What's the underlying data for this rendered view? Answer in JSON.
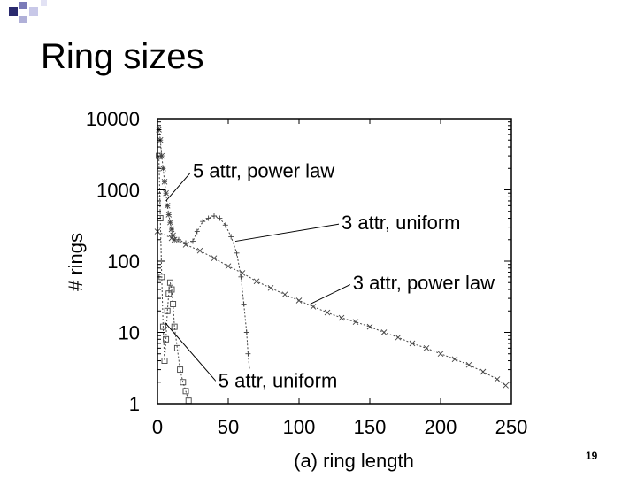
{
  "slide": {
    "title": "Ring sizes",
    "page_number": "19"
  },
  "chart_data": {
    "type": "line",
    "title": "",
    "xlabel": "(a) ring length",
    "ylabel": "# rings",
    "xlim": [
      0,
      250
    ],
    "ylim": [
      1,
      10000
    ],
    "y_scale": "log",
    "grid": false,
    "x_ticks": [
      {
        "value": 0,
        "label": "0"
      },
      {
        "value": 50,
        "label": "50"
      },
      {
        "value": 100,
        "label": "100"
      },
      {
        "value": 150,
        "label": "150"
      },
      {
        "value": 200,
        "label": "200"
      },
      {
        "value": 250,
        "label": "250"
      }
    ],
    "y_ticks": [
      {
        "value": 1,
        "label": "1"
      },
      {
        "value": 10,
        "label": "10"
      },
      {
        "value": 100,
        "label": "100"
      },
      {
        "value": 1000,
        "label": "1000"
      },
      {
        "value": 10000,
        "label": "10000"
      }
    ],
    "series": [
      {
        "name": "5 attr, power law",
        "marker": "star",
        "points": [
          [
            1,
            7000
          ],
          [
            2,
            5000
          ],
          [
            3,
            3000
          ],
          [
            4,
            2000
          ],
          [
            5,
            1300
          ],
          [
            6,
            900
          ],
          [
            7,
            600
          ],
          [
            8,
            450
          ],
          [
            9,
            350
          ],
          [
            10,
            280
          ],
          [
            11,
            230
          ],
          [
            12,
            200
          ]
        ]
      },
      {
        "name": "3 attr, uniform",
        "marker": "plus",
        "points": [
          [
            10,
            230
          ],
          [
            15,
            200
          ],
          [
            20,
            180
          ],
          [
            25,
            190
          ],
          [
            28,
            260
          ],
          [
            32,
            360
          ],
          [
            36,
            400
          ],
          [
            40,
            430
          ],
          [
            44,
            400
          ],
          [
            48,
            320
          ],
          [
            52,
            220
          ],
          [
            56,
            130
          ],
          [
            59,
            60
          ],
          [
            61,
            25
          ],
          [
            63,
            10
          ],
          [
            64,
            5
          ],
          [
            65,
            3
          ]
        ]
      },
      {
        "name": "3 attr, power law",
        "marker": "cross",
        "points": [
          [
            0,
            260
          ],
          [
            10,
            210
          ],
          [
            20,
            170
          ],
          [
            30,
            140
          ],
          [
            40,
            110
          ],
          [
            50,
            85
          ],
          [
            60,
            68
          ],
          [
            70,
            52
          ],
          [
            80,
            42
          ],
          [
            90,
            34
          ],
          [
            100,
            28
          ],
          [
            110,
            23
          ],
          [
            120,
            19
          ],
          [
            130,
            16
          ],
          [
            140,
            14
          ],
          [
            150,
            12
          ],
          [
            160,
            10
          ],
          [
            170,
            8.5
          ],
          [
            180,
            7
          ],
          [
            190,
            6
          ],
          [
            200,
            5
          ],
          [
            210,
            4.2
          ],
          [
            220,
            3.5
          ],
          [
            230,
            2.8
          ],
          [
            240,
            2.2
          ],
          [
            246,
            1.8
          ]
        ]
      },
      {
        "name": "5 attr, uniform",
        "marker": "square",
        "points": [
          [
            1,
            3000
          ],
          [
            2,
            400
          ],
          [
            3,
            60
          ],
          [
            4,
            12
          ],
          [
            5,
            4
          ],
          [
            6,
            8
          ],
          [
            7,
            20
          ],
          [
            8,
            35
          ],
          [
            9,
            50
          ],
          [
            10,
            40
          ],
          [
            11,
            25
          ],
          [
            12,
            12
          ],
          [
            14,
            6
          ],
          [
            16,
            3
          ],
          [
            18,
            2
          ],
          [
            20,
            1.5
          ],
          [
            22,
            1.1
          ]
        ]
      }
    ],
    "annotations": [
      {
        "text": "5 attr, power law",
        "series": "5 attr, power law",
        "label_x": 25,
        "label_y": 1500,
        "point": [
          6,
          700
        ]
      },
      {
        "text": "3 attr, uniform",
        "series": "3 attr, uniform",
        "label_x": 130,
        "label_y": 280,
        "point": [
          55,
          190
        ]
      },
      {
        "text": "3 attr, power law",
        "series": "3 attr, power law",
        "label_x": 138,
        "label_y": 40,
        "point": [
          108,
          25
        ]
      },
      {
        "text": "5 attr, uniform",
        "series": "5 attr, uniform",
        "label_x": 43,
        "label_y": 1.7,
        "point": [
          5,
          14
        ]
      }
    ],
    "colors": {
      "axis": "#000000",
      "series": "#444444",
      "text": "#000000"
    }
  }
}
